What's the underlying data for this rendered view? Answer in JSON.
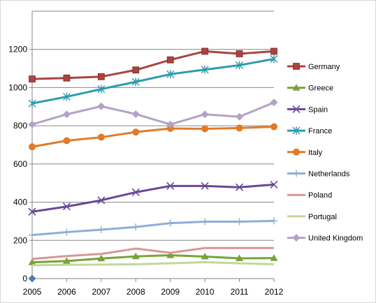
{
  "chart_data": {
    "type": "line",
    "title": "",
    "xlabel": "",
    "ylabel": "",
    "x": [
      "2005",
      "2006",
      "2007",
      "2008",
      "2009",
      "2010",
      "2011",
      "2012"
    ],
    "ylim": [
      0,
      1400
    ],
    "yticks": [
      "0",
      "200",
      "400",
      "600",
      "800",
      "1000",
      "1200"
    ],
    "grid": "horizontal",
    "legend_position": "right",
    "series": [
      {
        "name": "Germany",
        "color": "#a94442",
        "marker": "square",
        "values": [
          1045,
          1050,
          1057,
          1092,
          1145,
          1190,
          1177,
          1190
        ]
      },
      {
        "name": "Greece",
        "color": "#77a33a",
        "marker": "triangle",
        "values": [
          85,
          92,
          105,
          116,
          122,
          115,
          106,
          107
        ]
      },
      {
        "name": "Spain",
        "color": "#6b4796",
        "marker": "x",
        "values": [
          350,
          377,
          410,
          452,
          485,
          485,
          478,
          492
        ]
      },
      {
        "name": "France",
        "color": "#2e9bad",
        "marker": "asterisk",
        "values": [
          917,
          952,
          992,
          1030,
          1070,
          1094,
          1117,
          1150
        ]
      },
      {
        "name": "Italy",
        "color": "#e07b2a",
        "marker": "circle",
        "values": [
          690,
          722,
          740,
          767,
          786,
          784,
          788,
          795
        ]
      },
      {
        "name": "Netherlands",
        "color": "#8faed6",
        "marker": "plus",
        "values": [
          228,
          243,
          256,
          270,
          290,
          298,
          298,
          302
        ]
      },
      {
        "name": "Poland",
        "color": "#d99694",
        "marker": "none",
        "values": [
          103,
          118,
          129,
          157,
          135,
          160,
          160,
          160
        ]
      },
      {
        "name": "Portugal",
        "color": "#c3d69b",
        "marker": "none",
        "values": [
          70,
          72,
          73,
          75,
          80,
          86,
          80,
          75
        ]
      },
      {
        "name": "United Kingdom",
        "color": "#b3a2c7",
        "marker": "diamond",
        "values": [
          807,
          860,
          902,
          861,
          807,
          860,
          847,
          922
        ]
      }
    ],
    "extra_point": {
      "x": "2005",
      "value": 0,
      "color": "#4a7ebb",
      "marker": "diamond"
    }
  }
}
